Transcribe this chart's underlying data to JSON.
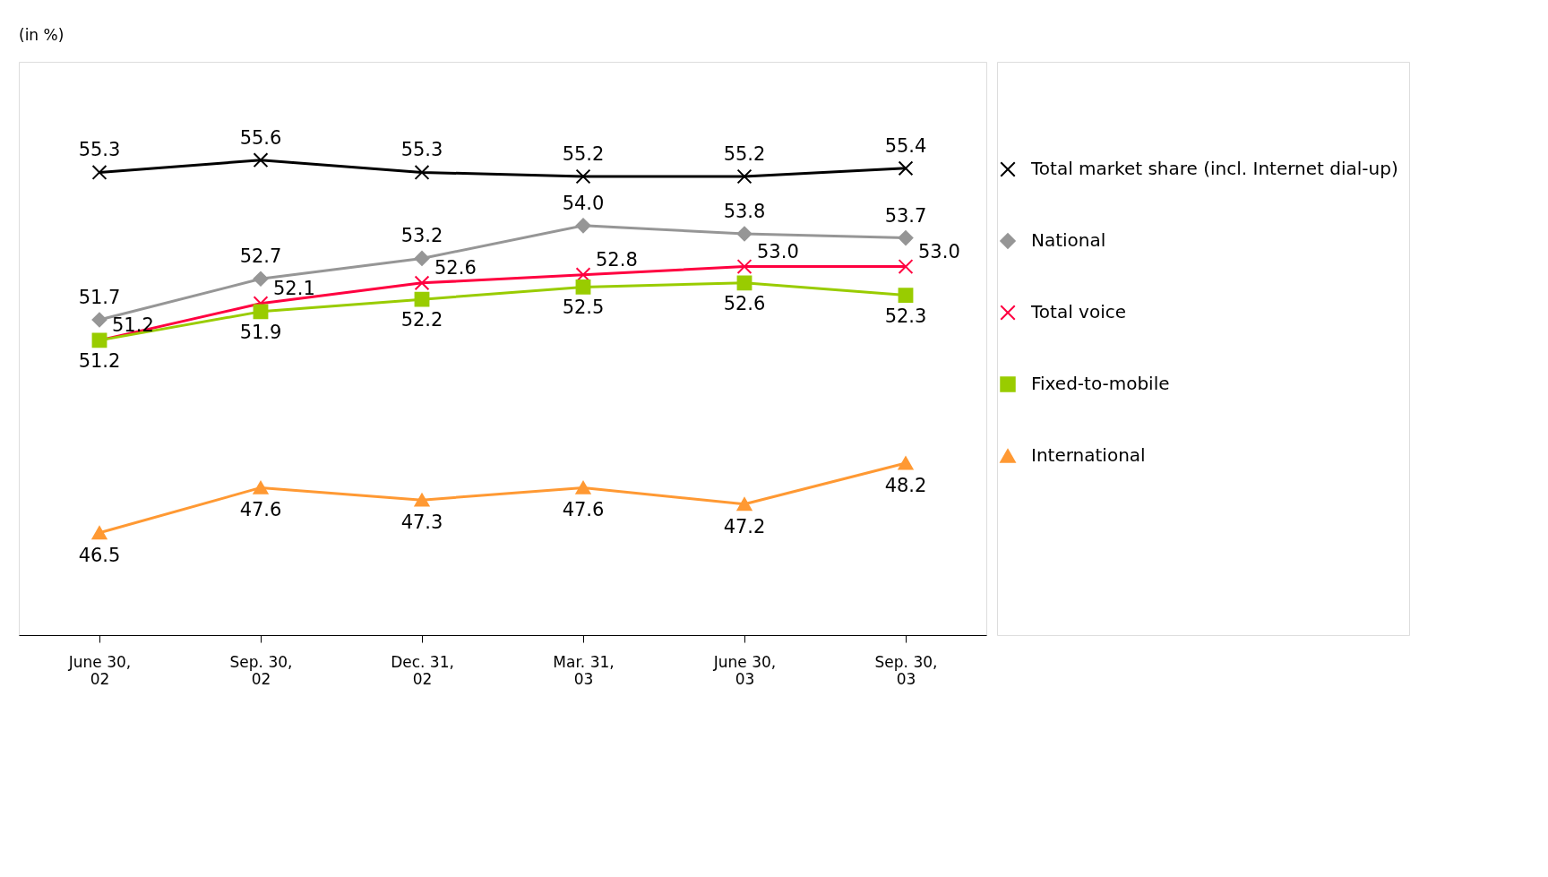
{
  "chart_data": {
    "type": "line",
    "ylabel": "(in %)",
    "categories": [
      "June 30,\n02",
      "Sep. 30,\n02",
      "Dec. 31,\n02",
      "Mar. 31,\n03",
      "June 30,\n03",
      "Sep. 30,\n03"
    ],
    "series": [
      {
        "name": "Total market share (incl. Internet dial-up)",
        "color": "#000000",
        "marker": "cross",
        "values": [
          55.3,
          55.6,
          55.3,
          55.2,
          55.2,
          55.4
        ],
        "value_labels": [
          "55.3",
          "55.6",
          "55.3",
          "55.2",
          "55.2",
          "55.4"
        ]
      },
      {
        "name": "National",
        "color": "#969696",
        "marker": "diamond",
        "values": [
          51.7,
          52.7,
          53.2,
          54.0,
          53.8,
          53.7
        ],
        "value_labels": [
          "51.7",
          "52.7",
          "53.2",
          "54.0",
          "53.8",
          "53.7"
        ]
      },
      {
        "name": "Total voice",
        "color": "#ff0040",
        "marker": "cross",
        "values": [
          51.2,
          52.1,
          52.6,
          52.8,
          53.0,
          53.0
        ],
        "value_labels": [
          "51.2",
          "52.1",
          "52.6",
          "52.8",
          "53.0",
          "53.0"
        ]
      },
      {
        "name": "Fixed-to-mobile",
        "color": "#99cc00",
        "marker": "square",
        "values": [
          51.2,
          51.9,
          52.2,
          52.5,
          52.6,
          52.3
        ],
        "value_labels": [
          "51.2",
          "51.9",
          "52.2",
          "52.5",
          "52.6",
          "52.3"
        ]
      },
      {
        "name": "International",
        "color": "#ff9933",
        "marker": "triangle",
        "values": [
          46.5,
          47.6,
          47.3,
          47.6,
          47.2,
          48.2
        ],
        "value_labels": [
          "46.5",
          "47.6",
          "47.3",
          "47.6",
          "47.2",
          "48.2"
        ]
      }
    ],
    "ylim": [
      44,
      58
    ],
    "tick_labels": "x",
    "grid": false,
    "legend": "right"
  }
}
